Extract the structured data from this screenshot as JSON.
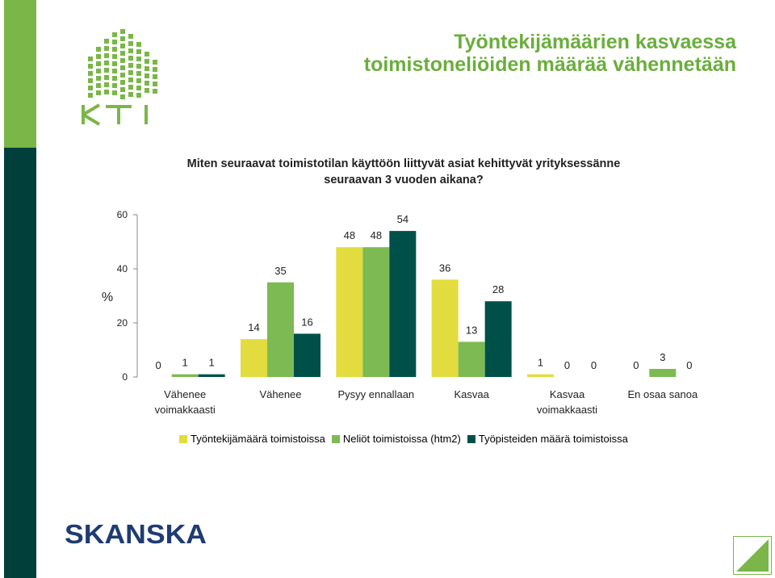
{
  "title": {
    "line1": "Työntekijämäärien kasvaessa",
    "line2": "toimistoneliöiden määrää vähennetään"
  },
  "question": {
    "line1": "Miten seuraavat toimistotilan käyttöön liittyvät asiat kehittyvät yrityksessänne",
    "line2": "seuraavan 3 vuoden aikana?"
  },
  "logo": {
    "text": "KTI",
    "icon": "kti-building-logo"
  },
  "footer_logo": {
    "text": "SKANSKA"
  },
  "colors": {
    "accent_green": "#7ab648",
    "dark_teal": "#003f3a",
    "series1": "#e2dc3e",
    "series2": "#7dba53",
    "series3": "#00504a"
  },
  "chart_data": {
    "type": "bar",
    "ylabel": "%",
    "ylim": [
      0,
      60
    ],
    "yticks": [
      0,
      20,
      40,
      60
    ],
    "grid": false,
    "legend_position": "bottom",
    "categories": [
      [
        "Vähenee",
        "voimakkaasti"
      ],
      [
        "Vähenee"
      ],
      [
        "Pysyy ennallaan"
      ],
      [
        "Kasvaa"
      ],
      [
        "Kasvaa",
        "voimakkaasti"
      ],
      [
        "En osaa sanoa"
      ]
    ],
    "series": [
      {
        "name": "Työntekijämäärä toimistoissa",
        "values": [
          0,
          14,
          48,
          36,
          1,
          0
        ]
      },
      {
        "name": "Neliöt toimistoissa (htm2)",
        "values": [
          1,
          35,
          48,
          13,
          0,
          3
        ]
      },
      {
        "name": "Työpisteiden määrä toimistoissa",
        "values": [
          1,
          16,
          54,
          28,
          0,
          0
        ]
      }
    ]
  }
}
